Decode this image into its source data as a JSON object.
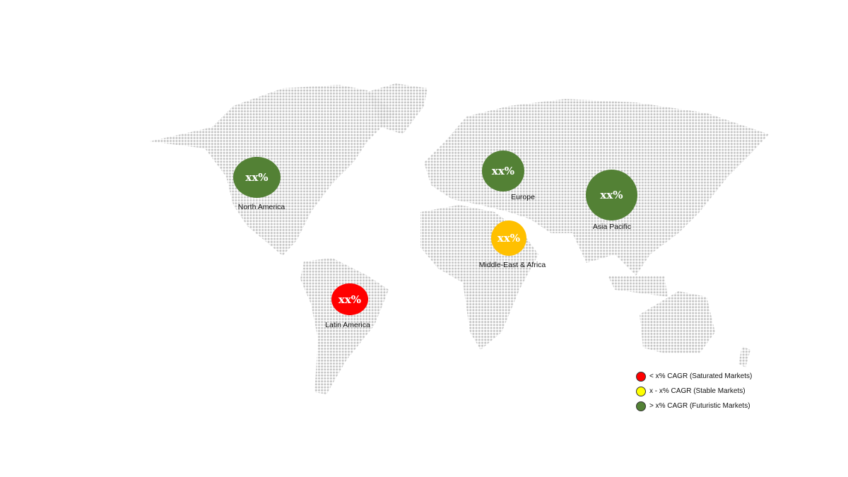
{
  "regions": [
    {
      "name": "North America",
      "value": "xx%",
      "color": "#538135"
    },
    {
      "name": "Europe",
      "value": "xx%",
      "color": "#538135"
    },
    {
      "name": "Asia Pacific",
      "value": "xx%",
      "color": "#538135"
    },
    {
      "name": "Middle-East & Africa",
      "value": "xx%",
      "color": "#FFC000"
    },
    {
      "name": "Latin America",
      "value": "xx%",
      "color": "#FF0000"
    }
  ],
  "legend": [
    {
      "label": "< x% CAGR (Saturated Markets)",
      "color": "#FF0000"
    },
    {
      "label": "x - x% CAGR (Stable Markets)",
      "color": "#FFFF00"
    },
    {
      "label": "> x% CAGR (Futuristic Markets)",
      "color": "#538135"
    }
  ]
}
